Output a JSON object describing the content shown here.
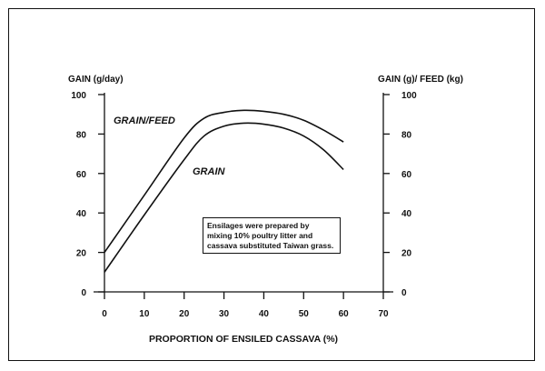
{
  "chart_data": {
    "type": "line",
    "title": "",
    "xlabel": "PROPORTION OF ENSILED CASSAVA (%)",
    "ylabel_left": "GAIN (g/day)",
    "ylabel_right": "GAIN (g)/ FEED (kg)",
    "xlim": [
      0,
      70
    ],
    "ylim": [
      0,
      100
    ],
    "xticks": [
      "0",
      "10",
      "20",
      "30",
      "40",
      "50",
      "60",
      "70"
    ],
    "yticks": [
      "0",
      "20",
      "40",
      "60",
      "80",
      "100"
    ],
    "grid": false,
    "series": [
      {
        "name": "GRAIN/FEED",
        "x": [
          0,
          10,
          20,
          25,
          30,
          35,
          40,
          45,
          50,
          55,
          60
        ],
        "y": [
          20,
          49,
          78,
          88,
          91,
          92,
          91.5,
          90,
          87,
          82,
          76
        ]
      },
      {
        "name": "GRAIN",
        "x": [
          0,
          10,
          20,
          25,
          30,
          35,
          40,
          45,
          50,
          55,
          60
        ],
        "y": [
          10,
          39,
          67,
          79,
          84,
          85.5,
          85,
          83,
          79,
          72,
          62
        ]
      }
    ],
    "annotation": "Ensilages were prepared by mixing 10% poultry litter and cassava substituted Taiwan grass.",
    "colors": {
      "line": "#111111",
      "background": "#ffffff"
    }
  }
}
